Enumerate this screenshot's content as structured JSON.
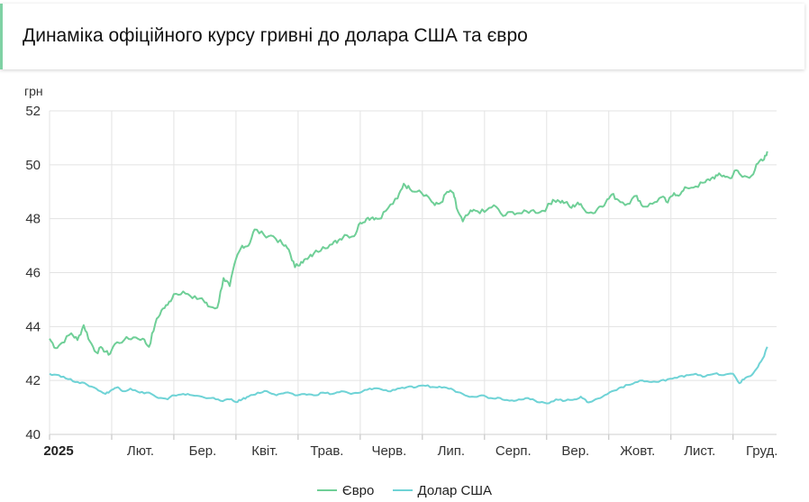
{
  "header": {
    "title": "Динаміка офіційного курсу гривні до долара США та євро"
  },
  "colors": {
    "euro": "#6fcf97",
    "usd": "#6fd3d6",
    "grid": "#e3e3e3"
  },
  "chart_data": {
    "type": "line",
    "title": "Динаміка офіційного курсу гривні до долара США та євро",
    "ylabel": "грн",
    "ylim": [
      40,
      52
    ],
    "yticks": [
      "52",
      "50",
      "48",
      "46",
      "44",
      "42",
      "40"
    ],
    "xlim": [
      0,
      11.7
    ],
    "xticks": [
      "2025",
      "Лют.",
      "Бер.",
      "Квіт.",
      "Трав.",
      "Черв.",
      "Лип.",
      "Серп.",
      "Вер.",
      "Жовт.",
      "Лист.",
      "Груд."
    ],
    "legend_position": "bottom",
    "grid": true,
    "series": [
      {
        "name": "Євро",
        "points": [
          [
            0,
            43.55
          ],
          [
            0.1,
            43.2
          ],
          [
            0.2,
            43.4
          ],
          [
            0.35,
            43.75
          ],
          [
            0.45,
            43.5
          ],
          [
            0.55,
            44.05
          ],
          [
            0.65,
            43.45
          ],
          [
            0.75,
            43.05
          ],
          [
            0.85,
            43.2
          ],
          [
            0.95,
            42.95
          ],
          [
            1.05,
            43.35
          ],
          [
            1.2,
            43.5
          ],
          [
            1.35,
            43.6
          ],
          [
            1.5,
            43.55
          ],
          [
            1.6,
            43.25
          ],
          [
            1.7,
            44.1
          ],
          [
            1.8,
            44.6
          ],
          [
            1.9,
            44.8
          ],
          [
            2.0,
            45.2
          ],
          [
            2.15,
            45.3
          ],
          [
            2.3,
            45.05
          ],
          [
            2.45,
            45.05
          ],
          [
            2.55,
            44.75
          ],
          [
            2.7,
            44.7
          ],
          [
            2.8,
            45.8
          ],
          [
            2.9,
            45.5
          ],
          [
            3.0,
            46.5
          ],
          [
            3.1,
            47.0
          ],
          [
            3.2,
            47.0
          ],
          [
            3.3,
            47.6
          ],
          [
            3.45,
            47.4
          ],
          [
            3.6,
            47.35
          ],
          [
            3.75,
            47.05
          ],
          [
            3.85,
            46.85
          ],
          [
            3.95,
            46.2
          ],
          [
            4.05,
            46.4
          ],
          [
            4.15,
            46.5
          ],
          [
            4.25,
            46.7
          ],
          [
            4.4,
            46.95
          ],
          [
            4.55,
            47.05
          ],
          [
            4.65,
            47.2
          ],
          [
            4.75,
            47.4
          ],
          [
            4.9,
            47.35
          ],
          [
            5.0,
            47.85
          ],
          [
            5.1,
            48.0
          ],
          [
            5.2,
            48.05
          ],
          [
            5.3,
            48.0
          ],
          [
            5.45,
            48.4
          ],
          [
            5.6,
            48.75
          ],
          [
            5.7,
            49.3
          ],
          [
            5.8,
            49.1
          ],
          [
            5.95,
            49.05
          ],
          [
            6.1,
            48.8
          ],
          [
            6.2,
            48.5
          ],
          [
            6.3,
            48.6
          ],
          [
            6.4,
            49.0
          ],
          [
            6.5,
            48.95
          ],
          [
            6.55,
            48.4
          ],
          [
            6.65,
            47.9
          ],
          [
            6.75,
            48.2
          ],
          [
            6.85,
            48.3
          ],
          [
            7.0,
            48.25
          ],
          [
            7.15,
            48.5
          ],
          [
            7.3,
            48.1
          ],
          [
            7.45,
            48.25
          ],
          [
            7.6,
            48.2
          ],
          [
            7.75,
            48.3
          ],
          [
            7.9,
            48.25
          ],
          [
            8.0,
            48.4
          ],
          [
            8.1,
            48.7
          ],
          [
            8.2,
            48.65
          ],
          [
            8.3,
            48.6
          ],
          [
            8.4,
            48.4
          ],
          [
            8.5,
            48.6
          ],
          [
            8.6,
            48.35
          ],
          [
            8.75,
            48.2
          ],
          [
            8.85,
            48.45
          ],
          [
            8.95,
            48.6
          ],
          [
            9.05,
            48.9
          ],
          [
            9.15,
            48.7
          ],
          [
            9.3,
            48.55
          ],
          [
            9.45,
            48.85
          ],
          [
            9.55,
            48.45
          ],
          [
            9.7,
            48.55
          ],
          [
            9.85,
            48.8
          ],
          [
            9.95,
            48.6
          ],
          [
            10.05,
            48.95
          ],
          [
            10.15,
            48.9
          ],
          [
            10.25,
            49.15
          ],
          [
            10.4,
            49.2
          ],
          [
            10.55,
            49.35
          ],
          [
            10.65,
            49.5
          ],
          [
            10.75,
            49.6
          ],
          [
            10.85,
            49.6
          ],
          [
            10.95,
            49.5
          ],
          [
            11.05,
            49.8
          ],
          [
            11.15,
            49.55
          ],
          [
            11.3,
            49.6
          ],
          [
            11.4,
            50.05
          ],
          [
            11.5,
            50.2
          ],
          [
            11.55,
            50.5
          ]
        ]
      },
      {
        "name": "Долар США",
        "points": [
          [
            0,
            42.25
          ],
          [
            0.15,
            42.2
          ],
          [
            0.3,
            42.05
          ],
          [
            0.45,
            41.95
          ],
          [
            0.6,
            41.85
          ],
          [
            0.75,
            41.7
          ],
          [
            0.9,
            41.5
          ],
          [
            1.0,
            41.65
          ],
          [
            1.1,
            41.75
          ],
          [
            1.2,
            41.6
          ],
          [
            1.3,
            41.7
          ],
          [
            1.45,
            41.55
          ],
          [
            1.6,
            41.55
          ],
          [
            1.75,
            41.35
          ],
          [
            1.9,
            41.3
          ],
          [
            2.0,
            41.45
          ],
          [
            2.15,
            41.5
          ],
          [
            2.3,
            41.45
          ],
          [
            2.45,
            41.4
          ],
          [
            2.6,
            41.35
          ],
          [
            2.75,
            41.25
          ],
          [
            2.9,
            41.3
          ],
          [
            3.0,
            41.2
          ],
          [
            3.1,
            41.3
          ],
          [
            3.2,
            41.4
          ],
          [
            3.35,
            41.55
          ],
          [
            3.5,
            41.6
          ],
          [
            3.65,
            41.45
          ],
          [
            3.8,
            41.55
          ],
          [
            3.95,
            41.45
          ],
          [
            4.1,
            41.5
          ],
          [
            4.25,
            41.45
          ],
          [
            4.4,
            41.55
          ],
          [
            4.55,
            41.5
          ],
          [
            4.7,
            41.6
          ],
          [
            4.85,
            41.5
          ],
          [
            5.0,
            41.55
          ],
          [
            5.15,
            41.7
          ],
          [
            5.3,
            41.7
          ],
          [
            5.45,
            41.6
          ],
          [
            5.6,
            41.7
          ],
          [
            5.75,
            41.75
          ],
          [
            5.9,
            41.75
          ],
          [
            6.05,
            41.8
          ],
          [
            6.2,
            41.75
          ],
          [
            6.35,
            41.75
          ],
          [
            6.5,
            41.65
          ],
          [
            6.65,
            41.5
          ],
          [
            6.8,
            41.4
          ],
          [
            6.95,
            41.45
          ],
          [
            7.1,
            41.35
          ],
          [
            7.25,
            41.35
          ],
          [
            7.4,
            41.25
          ],
          [
            7.55,
            41.3
          ],
          [
            7.7,
            41.35
          ],
          [
            7.85,
            41.2
          ],
          [
            8.0,
            41.15
          ],
          [
            8.15,
            41.3
          ],
          [
            8.3,
            41.25
          ],
          [
            8.45,
            41.3
          ],
          [
            8.55,
            41.4
          ],
          [
            8.65,
            41.2
          ],
          [
            8.75,
            41.25
          ],
          [
            8.9,
            41.4
          ],
          [
            9.05,
            41.6
          ],
          [
            9.2,
            41.75
          ],
          [
            9.35,
            41.85
          ],
          [
            9.5,
            42.0
          ],
          [
            9.65,
            41.95
          ],
          [
            9.8,
            41.95
          ],
          [
            9.95,
            42.05
          ],
          [
            10.1,
            42.1
          ],
          [
            10.25,
            42.2
          ],
          [
            10.4,
            42.25
          ],
          [
            10.55,
            42.15
          ],
          [
            10.7,
            42.25
          ],
          [
            10.85,
            42.2
          ],
          [
            11.0,
            42.25
          ],
          [
            11.1,
            41.9
          ],
          [
            11.2,
            42.1
          ],
          [
            11.3,
            42.2
          ],
          [
            11.4,
            42.5
          ],
          [
            11.5,
            42.9
          ],
          [
            11.55,
            43.25
          ]
        ]
      }
    ]
  }
}
